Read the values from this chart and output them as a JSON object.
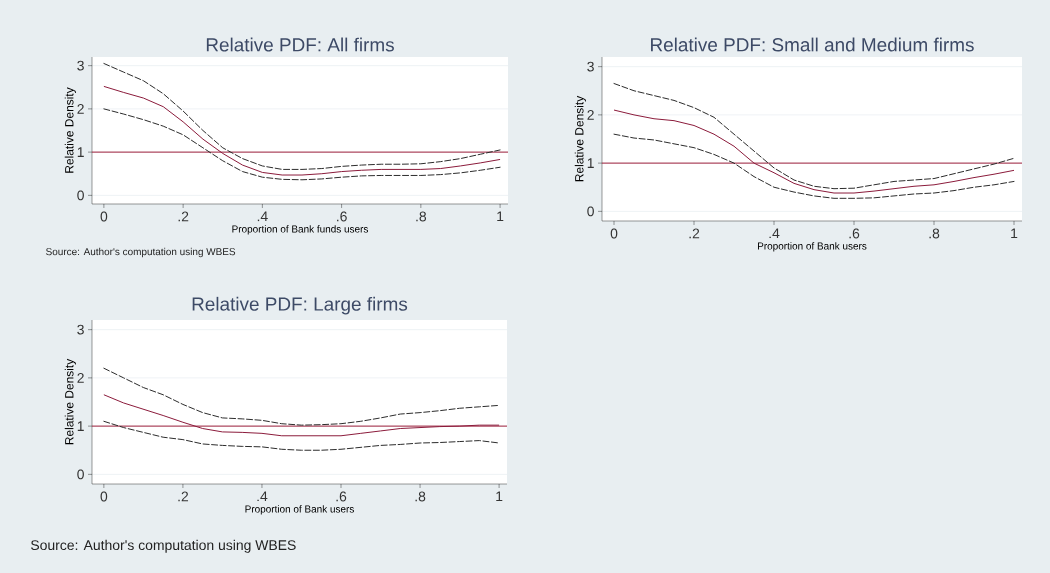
{
  "chart_data": [
    {
      "type": "line",
      "title": "Relative PDF: All firms",
      "xlabel": "Proportion of Bank funds users",
      "ylabel": "Relative Density",
      "x": [
        0,
        0.05,
        0.1,
        0.15,
        0.2,
        0.25,
        0.3,
        0.35,
        0.4,
        0.45,
        0.5,
        0.55,
        0.6,
        0.65,
        0.7,
        0.75,
        0.8,
        0.85,
        0.9,
        0.95,
        1
      ],
      "series": [
        {
          "color": "#2b2b2b",
          "line_style": "dashed",
          "values": [
            3.05,
            2.85,
            2.65,
            2.35,
            1.95,
            1.5,
            1.1,
            0.85,
            0.68,
            0.6,
            0.6,
            0.62,
            0.67,
            0.7,
            0.72,
            0.72,
            0.73,
            0.78,
            0.85,
            0.95,
            1.05
          ]
        },
        {
          "color": "#8b1a3a",
          "line_style": "solid",
          "values": [
            2.52,
            2.38,
            2.25,
            2.05,
            1.7,
            1.3,
            0.97,
            0.7,
            0.53,
            0.47,
            0.47,
            0.5,
            0.55,
            0.58,
            0.6,
            0.6,
            0.6,
            0.62,
            0.68,
            0.75,
            0.83
          ]
        },
        {
          "color": "#2b2b2b",
          "line_style": "dashed",
          "values": [
            2.0,
            1.88,
            1.75,
            1.6,
            1.4,
            1.1,
            0.8,
            0.55,
            0.42,
            0.37,
            0.36,
            0.38,
            0.42,
            0.45,
            0.46,
            0.46,
            0.46,
            0.48,
            0.52,
            0.58,
            0.65
          ]
        }
      ],
      "ref_lines": [
        {
          "axis": "y",
          "value": 1,
          "color": "#a0203c"
        }
      ],
      "xlim": [
        -0.03,
        1.02
      ],
      "ylim": [
        -0.2,
        3.2
      ],
      "xticks": [
        0,
        {
          "value": 0.2,
          "label": ".2"
        },
        {
          "value": 0.4,
          "label": ".4"
        },
        {
          "value": 0.6,
          "label": ".6"
        },
        {
          "value": 0.8,
          "label": ".8"
        },
        1
      ],
      "yticks": [
        0,
        1,
        2,
        3
      ],
      "grid": "y",
      "annotations": [
        "Source: Author's computation using WBES"
      ]
    },
    {
      "type": "line",
      "title": "Relative PDF: Small and Medium firms",
      "xlabel": "Proportion of Bank users",
      "ylabel": "Relative Density",
      "x": [
        0,
        0.05,
        0.1,
        0.15,
        0.2,
        0.25,
        0.3,
        0.35,
        0.4,
        0.45,
        0.5,
        0.55,
        0.6,
        0.65,
        0.7,
        0.75,
        0.8,
        0.85,
        0.9,
        0.95,
        1
      ],
      "series": [
        {
          "color": "#2b2b2b",
          "line_style": "dashed",
          "values": [
            2.65,
            2.5,
            2.4,
            2.3,
            2.15,
            1.95,
            1.6,
            1.25,
            0.9,
            0.65,
            0.52,
            0.47,
            0.48,
            0.55,
            0.62,
            0.65,
            0.68,
            0.78,
            0.88,
            0.98,
            1.1
          ]
        },
        {
          "color": "#8b1a3a",
          "line_style": "solid",
          "values": [
            2.1,
            2.0,
            1.92,
            1.88,
            1.78,
            1.6,
            1.35,
            1.0,
            0.8,
            0.58,
            0.45,
            0.38,
            0.38,
            0.42,
            0.47,
            0.52,
            0.55,
            0.62,
            0.7,
            0.77,
            0.85
          ]
        },
        {
          "color": "#2b2b2b",
          "line_style": "dashed",
          "values": [
            1.6,
            1.52,
            1.48,
            1.4,
            1.32,
            1.18,
            1.0,
            0.72,
            0.5,
            0.4,
            0.32,
            0.27,
            0.27,
            0.28,
            0.32,
            0.36,
            0.38,
            0.43,
            0.5,
            0.55,
            0.62
          ]
        }
      ],
      "ref_lines": [
        {
          "axis": "y",
          "value": 1,
          "color": "#a0203c"
        }
      ],
      "xlim": [
        -0.03,
        1.02
      ],
      "ylim": [
        -0.2,
        3.2
      ],
      "xticks": [
        0,
        {
          "value": 0.2,
          "label": ".2"
        },
        {
          "value": 0.4,
          "label": ".4"
        },
        {
          "value": 0.6,
          "label": ".6"
        },
        {
          "value": 0.8,
          "label": ".8"
        },
        1
      ],
      "yticks": [
        0,
        1,
        2,
        3
      ],
      "grid": "y"
    },
    {
      "type": "line",
      "title": "Relative PDF: Large firms",
      "xlabel": "Proportion of Bank users",
      "ylabel": "Relative Density",
      "x": [
        0,
        0.05,
        0.1,
        0.15,
        0.2,
        0.25,
        0.3,
        0.35,
        0.4,
        0.45,
        0.5,
        0.55,
        0.6,
        0.65,
        0.7,
        0.75,
        0.8,
        0.85,
        0.9,
        0.95,
        1
      ],
      "series": [
        {
          "color": "#2b2b2b",
          "line_style": "dashed",
          "values": [
            2.2,
            2.0,
            1.8,
            1.65,
            1.45,
            1.28,
            1.17,
            1.15,
            1.12,
            1.05,
            1.02,
            1.03,
            1.05,
            1.1,
            1.17,
            1.25,
            1.28,
            1.32,
            1.37,
            1.4,
            1.43
          ]
        },
        {
          "color": "#8b1a3a",
          "line_style": "solid",
          "values": [
            1.65,
            1.48,
            1.35,
            1.22,
            1.08,
            0.95,
            0.88,
            0.87,
            0.85,
            0.8,
            0.8,
            0.8,
            0.8,
            0.85,
            0.9,
            0.95,
            0.97,
            0.99,
            1.0,
            1.02,
            1.02
          ]
        },
        {
          "color": "#2b2b2b",
          "line_style": "dashed",
          "values": [
            1.1,
            0.97,
            0.87,
            0.77,
            0.72,
            0.63,
            0.6,
            0.58,
            0.57,
            0.52,
            0.5,
            0.5,
            0.52,
            0.56,
            0.6,
            0.62,
            0.65,
            0.66,
            0.68,
            0.7,
            0.65
          ]
        }
      ],
      "ref_lines": [
        {
          "axis": "y",
          "value": 1,
          "color": "#a0203c"
        }
      ],
      "xlim": [
        -0.03,
        1.02
      ],
      "ylim": [
        -0.2,
        3.2
      ],
      "xticks": [
        0,
        {
          "value": 0.2,
          "label": ".2"
        },
        {
          "value": 0.4,
          "label": ".4"
        },
        {
          "value": 0.6,
          "label": ".6"
        },
        {
          "value": 0.8,
          "label": ".8"
        },
        1
      ],
      "yticks": [
        0,
        1,
        2,
        3
      ],
      "grid": "y",
      "annotations": [
        "Source: Author's computation using WBES"
      ]
    }
  ]
}
